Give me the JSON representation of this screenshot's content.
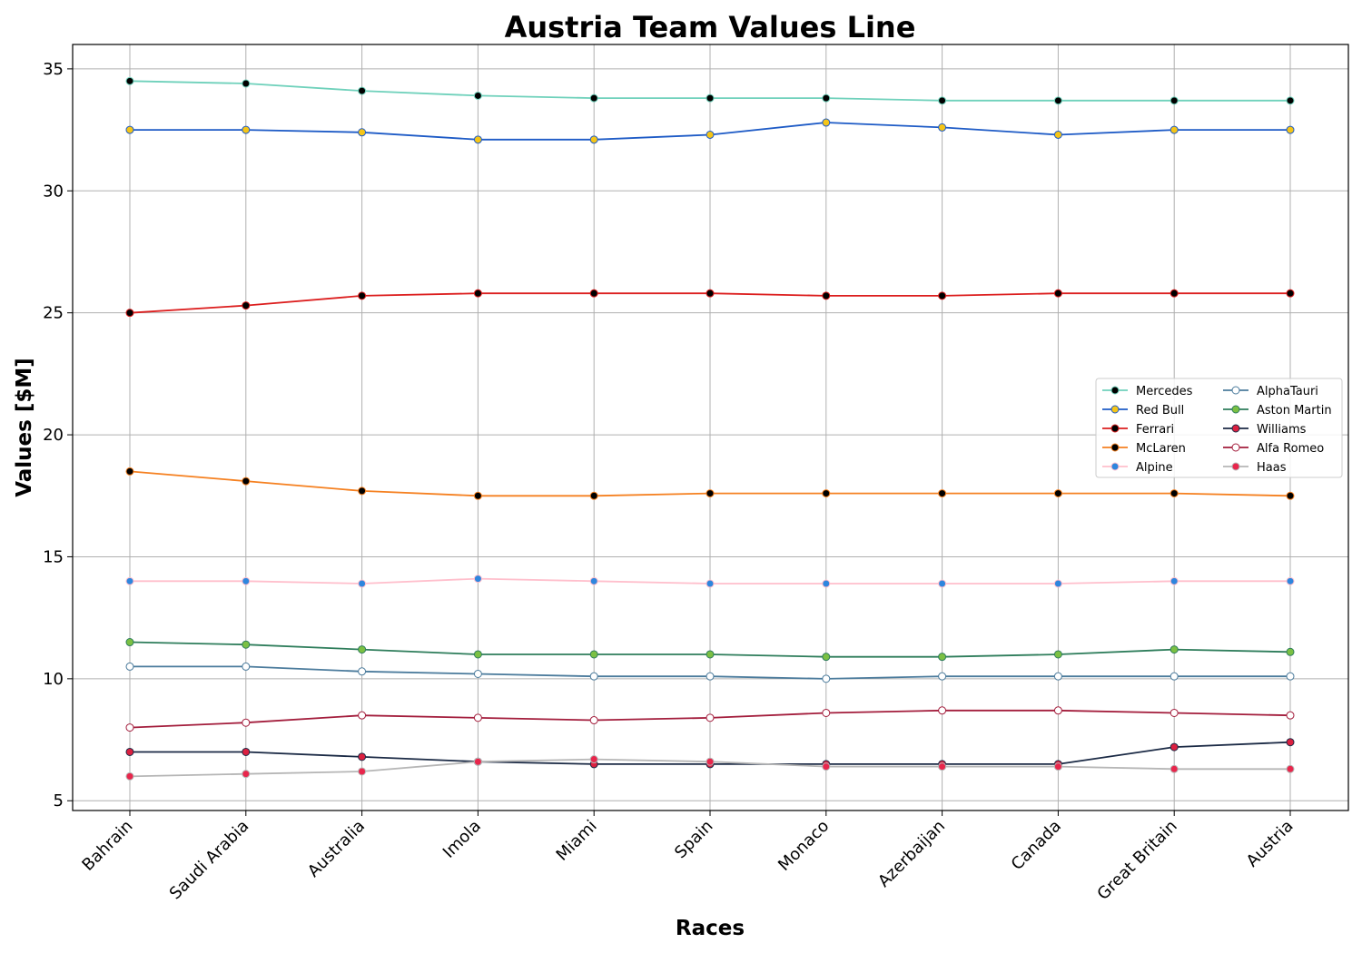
{
  "chart_data": {
    "type": "line",
    "title": "Austria Team Values Line",
    "xlabel": "Races",
    "ylabel": "Values [$M]",
    "categories": [
      "Bahrain",
      "Saudi Arabia",
      "Australia",
      "Imola",
      "Miami",
      "Spain",
      "Monaco",
      "Azerbaijan",
      "Canada",
      "Great Britain",
      "Austria"
    ],
    "ylim": [
      4.6,
      36.0
    ],
    "yticks": [
      5,
      10,
      15,
      20,
      25,
      30,
      35
    ],
    "grid": true,
    "legend_position": "center-right",
    "series": [
      {
        "name": "Mercedes",
        "color": "#6fd1bb",
        "marker_face": "#000000",
        "marker_edge": "#6fd1bb",
        "values": [
          34.5,
          34.4,
          34.1,
          33.9,
          33.8,
          33.8,
          33.8,
          33.7,
          33.7,
          33.7,
          33.7
        ]
      },
      {
        "name": "Red Bull",
        "color": "#1e5bc6",
        "marker_face": "#f5c518",
        "marker_edge": "#1e5bc6",
        "values": [
          32.5,
          32.5,
          32.4,
          32.1,
          32.1,
          32.3,
          32.8,
          32.6,
          32.3,
          32.5,
          32.5
        ]
      },
      {
        "name": "Ferrari",
        "color": "#dc1e1e",
        "marker_face": "#000000",
        "marker_edge": "#dc1e1e",
        "values": [
          25.0,
          25.3,
          25.7,
          25.8,
          25.8,
          25.8,
          25.7,
          25.7,
          25.8,
          25.8,
          25.8
        ]
      },
      {
        "name": "McLaren",
        "color": "#f58020",
        "marker_face": "#000000",
        "marker_edge": "#f58020",
        "values": [
          18.5,
          18.1,
          17.7,
          17.5,
          17.5,
          17.6,
          17.6,
          17.6,
          17.6,
          17.6,
          17.5
        ]
      },
      {
        "name": "Alpine",
        "color": "#ffbfcc",
        "marker_face": "#2e86de",
        "marker_edge": "#ffbfcc",
        "values": [
          14.0,
          14.0,
          13.9,
          14.1,
          14.0,
          13.9,
          13.9,
          13.9,
          13.9,
          14.0,
          14.0
        ]
      },
      {
        "name": "AlphaTauri",
        "color": "#4b7b9c",
        "marker_face": "#ffffff",
        "marker_edge": "#4b7b9c",
        "values": [
          10.5,
          10.5,
          10.3,
          10.2,
          10.1,
          10.1,
          10.0,
          10.1,
          10.1,
          10.1,
          10.1
        ]
      },
      {
        "name": "Aston Martin",
        "color": "#2e7d5b",
        "marker_face": "#7bc043",
        "marker_edge": "#2e7d5b",
        "values": [
          11.5,
          11.4,
          11.2,
          11.0,
          11.0,
          11.0,
          10.9,
          10.9,
          11.0,
          11.2,
          11.1
        ]
      },
      {
        "name": "Williams",
        "color": "#1b2a45",
        "marker_face": "#dc2040",
        "marker_edge": "#1b2a45",
        "values": [
          7.0,
          7.0,
          6.8,
          6.6,
          6.5,
          6.5,
          6.5,
          6.5,
          6.5,
          7.2,
          7.4
        ]
      },
      {
        "name": "Alfa Romeo",
        "color": "#a31d3c",
        "marker_face": "#ffffff",
        "marker_edge": "#a31d3c",
        "values": [
          8.0,
          8.2,
          8.5,
          8.4,
          8.3,
          8.4,
          8.6,
          8.7,
          8.7,
          8.6,
          8.5
        ]
      },
      {
        "name": "Haas",
        "color": "#b6b6b6",
        "marker_face": "#e8264c",
        "marker_edge": "#b6b6b6",
        "values": [
          6.0,
          6.1,
          6.2,
          6.6,
          6.7,
          6.6,
          6.4,
          6.4,
          6.4,
          6.3,
          6.3
        ]
      }
    ]
  }
}
